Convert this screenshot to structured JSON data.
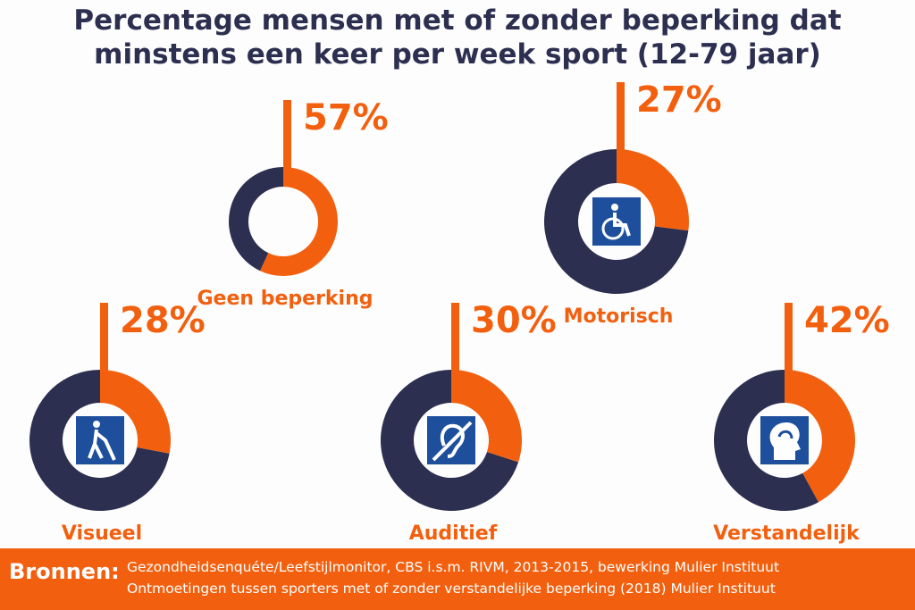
{
  "chart_data": {
    "type": "donut",
    "title": "Percentage mensen met of zonder beperking dat minstens een keer per week sport (12-79 jaar)",
    "categories": [
      "Geen beperking",
      "Motorisch",
      "Visueel",
      "Auditief",
      "Verstandelijk"
    ],
    "values": [
      57,
      27,
      28,
      30,
      42
    ],
    "value_labels": [
      "57%",
      "27%",
      "28%",
      "30%",
      "42%"
    ],
    "color": "#f2600f",
    "rest_color": "#2d2f50"
  },
  "sources": {
    "label": "Bronnen:",
    "lines": [
      "Gezondheidsenquéte/Leefstijlmonitor, CBS i.s.m. RIVM, 2013-2015, bewerking Mulier Instituut",
      "Ontmoetingen tussen sporters met of zonder verstandelijke beperking (2018) Mulier Instituut"
    ]
  }
}
